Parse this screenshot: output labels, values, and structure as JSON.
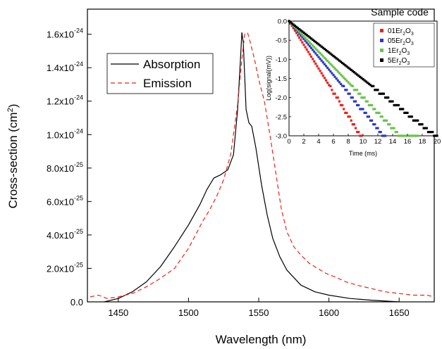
{
  "chart_data": [
    {
      "type": "line",
      "xlabel": "Wavelength (nm)",
      "ylabel_main": "Cross-section (cm",
      "ylabel_sup": "2",
      "ylabel_end": ")",
      "xlim": [
        1428,
        1675
      ],
      "ylim": [
        0,
        1.75
      ],
      "y_unit_note": "values in units of 1e-24 cm^2",
      "x_ticks": [
        {
          "v": 1450,
          "label": "1450"
        },
        {
          "v": 1500,
          "label": "1500"
        },
        {
          "v": 1550,
          "label": "1550"
        },
        {
          "v": 1600,
          "label": "1600"
        },
        {
          "v": 1650,
          "label": "1650"
        }
      ],
      "y_ticks": [
        {
          "v": 0.0,
          "base": "0.0",
          "exp": ""
        },
        {
          "v": 0.2,
          "base": "2.0x10",
          "exp": "-25"
        },
        {
          "v": 0.4,
          "base": "4.0x10",
          "exp": "-25"
        },
        {
          "v": 0.6,
          "base": "6.0x10",
          "exp": "-25"
        },
        {
          "v": 0.8,
          "base": "8.0x10",
          "exp": "-25"
        },
        {
          "v": 1.0,
          "base": "1.0x10",
          "exp": "-24"
        },
        {
          "v": 1.2,
          "base": "1.2x10",
          "exp": "-24"
        },
        {
          "v": 1.4,
          "base": "1.4x10",
          "exp": "-24"
        },
        {
          "v": 1.6,
          "base": "1.6x10",
          "exp": "-24"
        }
      ],
      "legend_position": "upper-left",
      "series": [
        {
          "name": "Absorption",
          "color": "#000000",
          "style": "solid",
          "points": [
            [
              1440,
              0.0
            ],
            [
              1450,
              0.02
            ],
            [
              1460,
              0.06
            ],
            [
              1470,
              0.12
            ],
            [
              1480,
              0.21
            ],
            [
              1490,
              0.33
            ],
            [
              1500,
              0.46
            ],
            [
              1508,
              0.58
            ],
            [
              1513,
              0.67
            ],
            [
              1518,
              0.74
            ],
            [
              1523,
              0.76
            ],
            [
              1528,
              0.79
            ],
            [
              1532,
              0.88
            ],
            [
              1535,
              1.15
            ],
            [
              1537,
              1.45
            ],
            [
              1538,
              1.61
            ],
            [
              1539,
              1.55
            ],
            [
              1540,
              1.35
            ],
            [
              1541,
              1.15
            ],
            [
              1543,
              1.07
            ],
            [
              1545,
              1.05
            ],
            [
              1548,
              0.92
            ],
            [
              1552,
              0.7
            ],
            [
              1556,
              0.52
            ],
            [
              1560,
              0.38
            ],
            [
              1565,
              0.27
            ],
            [
              1570,
              0.19
            ],
            [
              1580,
              0.1
            ],
            [
              1590,
              0.06
            ],
            [
              1600,
              0.04
            ],
            [
              1615,
              0.02
            ],
            [
              1630,
              0.01
            ],
            [
              1650,
              0.0
            ]
          ]
        },
        {
          "name": "Emission",
          "color": "#e8231e",
          "style": "dashed",
          "points": [
            [
              1430,
              0.03
            ],
            [
              1436,
              0.04
            ],
            [
              1442,
              0.02
            ],
            [
              1450,
              0.03
            ],
            [
              1460,
              0.05
            ],
            [
              1470,
              0.09
            ],
            [
              1478,
              0.13
            ],
            [
              1485,
              0.17
            ],
            [
              1490,
              0.2
            ],
            [
              1495,
              0.26
            ],
            [
              1500,
              0.32
            ],
            [
              1505,
              0.4
            ],
            [
              1510,
              0.48
            ],
            [
              1515,
              0.55
            ],
            [
              1520,
              0.63
            ],
            [
              1525,
              0.73
            ],
            [
              1530,
              0.88
            ],
            [
              1535,
              1.18
            ],
            [
              1538,
              1.45
            ],
            [
              1540,
              1.6
            ],
            [
              1542,
              1.61
            ],
            [
              1544,
              1.55
            ],
            [
              1547,
              1.45
            ],
            [
              1550,
              1.33
            ],
            [
              1554,
              1.2
            ],
            [
              1558,
              1.0
            ],
            [
              1562,
              0.78
            ],
            [
              1566,
              0.56
            ],
            [
              1570,
              0.42
            ],
            [
              1575,
              0.33
            ],
            [
              1580,
              0.28
            ],
            [
              1586,
              0.23
            ],
            [
              1592,
              0.2
            ],
            [
              1598,
              0.17
            ],
            [
              1604,
              0.15
            ],
            [
              1612,
              0.12
            ],
            [
              1620,
              0.1
            ],
            [
              1630,
              0.08
            ],
            [
              1640,
              0.06
            ],
            [
              1650,
              0.05
            ],
            [
              1660,
              0.04
            ],
            [
              1670,
              0.04
            ],
            [
              1675,
              0.03
            ]
          ]
        }
      ]
    },
    {
      "type": "scatter",
      "title": "Sample code",
      "xlabel": "Time (ms)",
      "ylabel": "Log(signal(mV))",
      "xlim": [
        0,
        20
      ],
      "ylim": [
        -3.0,
        0.0
      ],
      "x_ticks": [
        "0",
        "2",
        "4",
        "6",
        "8",
        "10",
        "12",
        "14",
        "16",
        "18",
        "20"
      ],
      "y_ticks": [
        "0.0",
        "-0.5",
        "-1.0",
        "-1.5",
        "-2.0",
        "-2.5",
        "-3.0"
      ],
      "legend_position": "right",
      "series": [
        {
          "name_prefix": "01Er",
          "name_sub1": "2",
          "name_mid": "O",
          "name_sub2": "3",
          "color": "#e8231e",
          "slope": -0.31,
          "end_x": 9.8
        },
        {
          "name_prefix": "05Er",
          "name_sub1": "2",
          "name_mid": "O",
          "name_sub2": "3",
          "color": "#2b3ac7",
          "slope": -0.235,
          "end_x": 13.0
        },
        {
          "name_prefix": "1Er",
          "name_sub1": "2",
          "name_mid": "O",
          "name_sub2": "3",
          "color": "#6cc24a",
          "slope": -0.2,
          "end_x": 17.5
        },
        {
          "name_prefix": "5Er",
          "name_sub1": "2",
          "name_mid": "O",
          "name_sub2": "3",
          "color": "#000000",
          "slope": -0.152,
          "end_x": 20.0
        }
      ]
    }
  ]
}
